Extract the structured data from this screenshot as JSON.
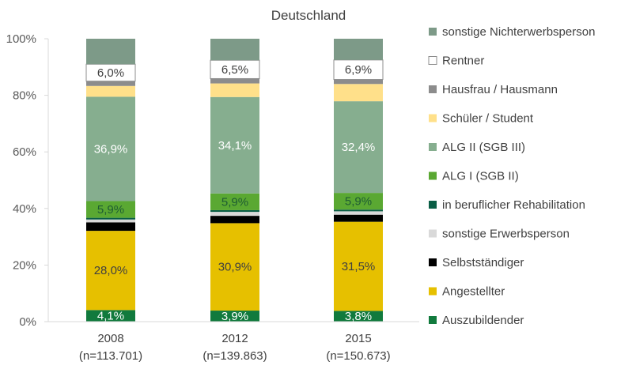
{
  "chart_data": {
    "type": "bar",
    "stacked": true,
    "title": "Deutschland",
    "xlabel": "",
    "ylabel": "",
    "ylim": [
      0,
      100
    ],
    "yticks": [
      "0%",
      "20%",
      "40%",
      "60%",
      "80%",
      "100%"
    ],
    "grid": false,
    "legend_position": "right",
    "categories": [
      {
        "year": "2008",
        "n": "(n=113.701)"
      },
      {
        "year": "2012",
        "n": "(n=139.863)"
      },
      {
        "year": "2015",
        "n": "(n=150.673)"
      }
    ],
    "series": [
      {
        "name": "Auszubildender",
        "color": "#117a3d",
        "values": [
          4.1,
          3.9,
          3.8
        ],
        "labels": [
          "4,1%",
          "3,9%",
          "3,8%"
        ],
        "label_color": "#ffffff"
      },
      {
        "name": "Angestellter",
        "color": "#e6c000",
        "values": [
          28.0,
          30.9,
          31.5
        ],
        "labels": [
          "28,0%",
          "30,9%",
          "31,5%"
        ],
        "label_color": "#404040"
      },
      {
        "name": "Selbstständiger",
        "color": "#000000",
        "values": [
          3.0,
          2.6,
          2.5
        ],
        "labels": [
          "",
          "",
          ""
        ],
        "label_color": "#ffffff"
      },
      {
        "name": "sonstige Erwerbsperson",
        "color": "#d9d9d9",
        "values": [
          1.0,
          1.4,
          1.2
        ],
        "labels": [
          "",
          "",
          ""
        ],
        "label_color": "#404040"
      },
      {
        "name": "in beruflicher Rehabilitation",
        "color": "#0a5e46",
        "values": [
          0.6,
          0.6,
          0.6
        ],
        "labels": [
          "",
          "",
          ""
        ],
        "label_color": "#ffffff"
      },
      {
        "name": "ALG I (SGB II)",
        "color": "#5aa832",
        "values": [
          5.9,
          5.9,
          5.9
        ],
        "labels": [
          "5,9%",
          "5,9%",
          "5,9%"
        ],
        "label_color": "#1e5c32"
      },
      {
        "name": "ALG II (SGB III)",
        "color": "#86ae8f",
        "values": [
          36.9,
          34.1,
          32.4
        ],
        "labels": [
          "36,9%",
          "34,1%",
          "32,4%"
        ],
        "label_color": "#ffffff"
      },
      {
        "name": "Schüler / Student",
        "color": "#ffe08a",
        "values": [
          3.8,
          4.8,
          6.1
        ],
        "labels": [
          "",
          "",
          ""
        ],
        "label_color": "#404040"
      },
      {
        "name": "Hausfrau / Hausmann",
        "color": "#8c8c8c",
        "values": [
          1.7,
          1.7,
          1.6
        ],
        "labels": [
          "",
          "",
          ""
        ],
        "label_color": "#ffffff"
      },
      {
        "name": "Rentner",
        "color": "#ffffff",
        "stroke": "#8c8c8c",
        "values": [
          6.0,
          6.5,
          6.9
        ],
        "labels": [
          "6,0%",
          "6,5%",
          "6,9%"
        ],
        "label_color": "#404040"
      },
      {
        "name": "sonstige Nichterwerbsperson",
        "color": "#7d9a88",
        "values": [
          9.0,
          7.6,
          7.5
        ],
        "labels": [
          "",
          "",
          ""
        ],
        "label_color": "#ffffff"
      }
    ]
  }
}
